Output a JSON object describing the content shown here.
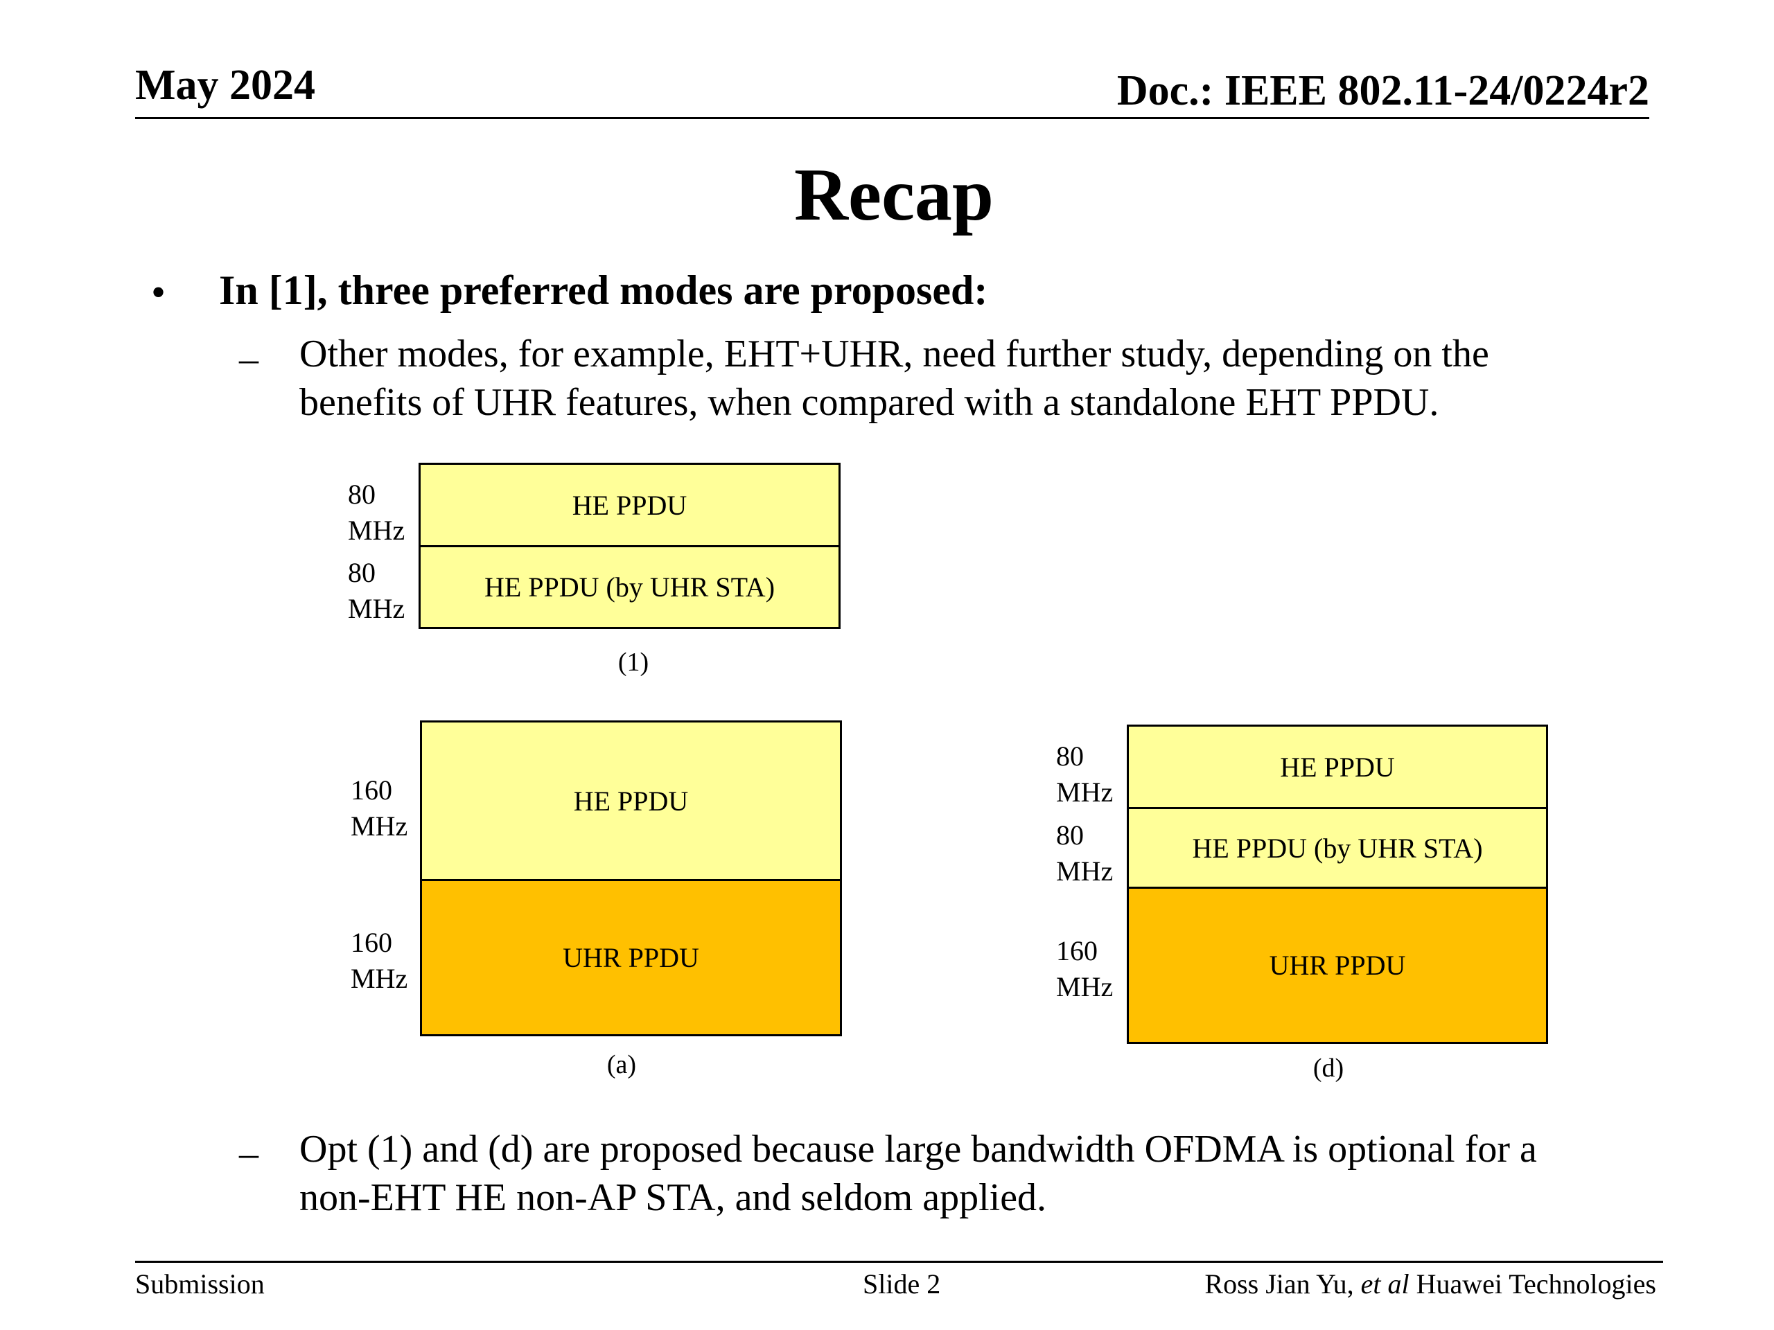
{
  "header": {
    "date": "May 2024",
    "doc": "Doc.: IEEE 802.11-24/0224r2"
  },
  "title": "Recap",
  "bullet": {
    "marker": "•",
    "text": "In [1], three preferred modes are proposed:"
  },
  "sub_bullets": [
    {
      "marker": "–",
      "line1": "Other modes, for example, EHT+UHR, need further study, depending on the",
      "line2": "benefits of UHR features, when compared with a standalone EHT PPDU."
    },
    {
      "marker": "–",
      "line1": "Opt (1) and (d) are proposed because large bandwidth OFDMA is optional for a",
      "line2": "non-EHT HE non-AP STA, and seldom applied."
    }
  ],
  "diagrams": {
    "d1": {
      "caption": "(1)",
      "rows": [
        {
          "bw_num": "80",
          "bw_unit": "MHz",
          "label": "HE PPDU"
        },
        {
          "bw_num": "80",
          "bw_unit": "MHz",
          "label": "HE PPDU (by UHR STA)"
        }
      ]
    },
    "da": {
      "caption": "(a)",
      "rows": [
        {
          "bw_num": "160",
          "bw_unit": "MHz",
          "label": "HE PPDU"
        },
        {
          "bw_num": "160",
          "bw_unit": "MHz",
          "label": "UHR PPDU"
        }
      ]
    },
    "dd": {
      "caption": "(d)",
      "rows": [
        {
          "bw_num": "80",
          "bw_unit": "MHz",
          "label": "HE PPDU"
        },
        {
          "bw_num": "80",
          "bw_unit": "MHz",
          "label": "HE PPDU (by UHR STA)"
        },
        {
          "bw_num": "160",
          "bw_unit": "MHz",
          "label": "UHR PPDU"
        }
      ]
    }
  },
  "colors": {
    "he_fill": "#ffff99",
    "uhr_fill": "#ffc000"
  },
  "footer": {
    "left": "Submission",
    "center": "Slide 2",
    "author": "Ross Jian Yu,",
    "etal": "et al",
    "company": "Huawei Technologies"
  }
}
